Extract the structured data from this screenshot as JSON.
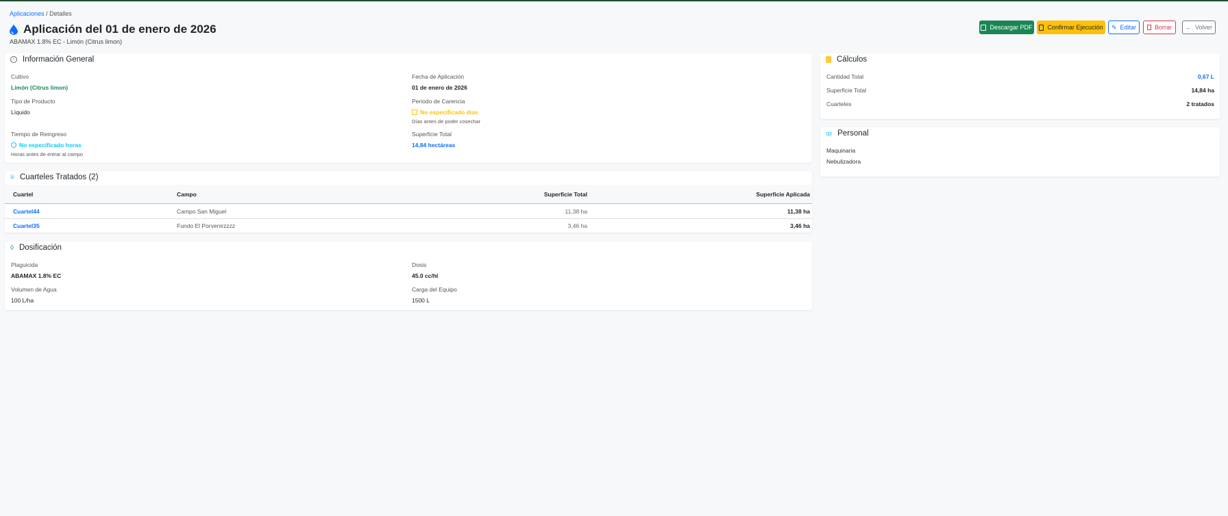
{
  "breadcrumb": {
    "parent": "Aplicaciones",
    "sep": "/",
    "current": "Detalles"
  },
  "header": {
    "title": "Aplicación del 01 de enero de 2026",
    "subtitle": "ABAMAX 1.8% EC - Limón (Citrus limon)"
  },
  "actions": {
    "pdf": "Descargar PDF",
    "confirm": "Confirmar Ejecución",
    "edit": "Editar",
    "delete": "Borrar",
    "back": "Volver"
  },
  "colors": {
    "green": "#198754",
    "yellow": "#ffc107",
    "blue": "#0d6efd",
    "red": "#dc3545",
    "cyan": "#0dcaf0"
  },
  "info": {
    "title": "Información General",
    "cultivo_label": "Cultivo",
    "cultivo": "Limón (Citrus limon)",
    "tipo_label": "Tipo de Producto",
    "tipo": "Líquido",
    "reingreso_label": "Tiempo de Reingreso",
    "reingreso": "No especificado horas",
    "reingreso_note": "Horas antes de entrar al campo",
    "fecha_label": "Fecha de Aplicación",
    "fecha": "01 de enero de 2026",
    "carencia_label": "Periodo de Carencia",
    "carencia": "No especificado días",
    "carencia_note": "Días antes de poder cosechar",
    "superficie_label": "Superficie Total",
    "superficie": "14,84 hectáreas"
  },
  "cuarteles": {
    "title": "Cuarteles Tratados (2)",
    "columns": [
      "Cuartel",
      "Campo",
      "Superficie Total",
      "Superficie Aplicada"
    ],
    "rows": [
      [
        "Cuartel44",
        "Campo San Miguel",
        "11,38 ha",
        "11,38 ha"
      ],
      [
        "Cuartel35",
        "Fundo El Porvenirzzzz",
        "3,46 ha",
        "3,46 ha"
      ]
    ]
  },
  "dosificacion": {
    "title": "Dosificación",
    "plaguicida_label": "Plaguicida",
    "plaguicida": "ABAMAX 1.8% EC",
    "volumen_label": "Volumen de Agua",
    "volumen": "100 L/ha",
    "dosis_label": "Dosis",
    "dosis": "45.0 cc/hl",
    "carga_label": "Carga del Equipo",
    "carga": "1500 L"
  },
  "calculos": {
    "title": "Cálculos",
    "items": [
      {
        "label": "Cantidad Total",
        "value": "0,67 L"
      },
      {
        "label": "Superficie Total",
        "value": "14,84 ha"
      },
      {
        "label": "Cuarteles",
        "value": "2 tratados"
      }
    ]
  },
  "personal": {
    "title": "Personal",
    "maquinaria_label": "Maquinaria",
    "maquinaria": "Nebulizadora"
  }
}
